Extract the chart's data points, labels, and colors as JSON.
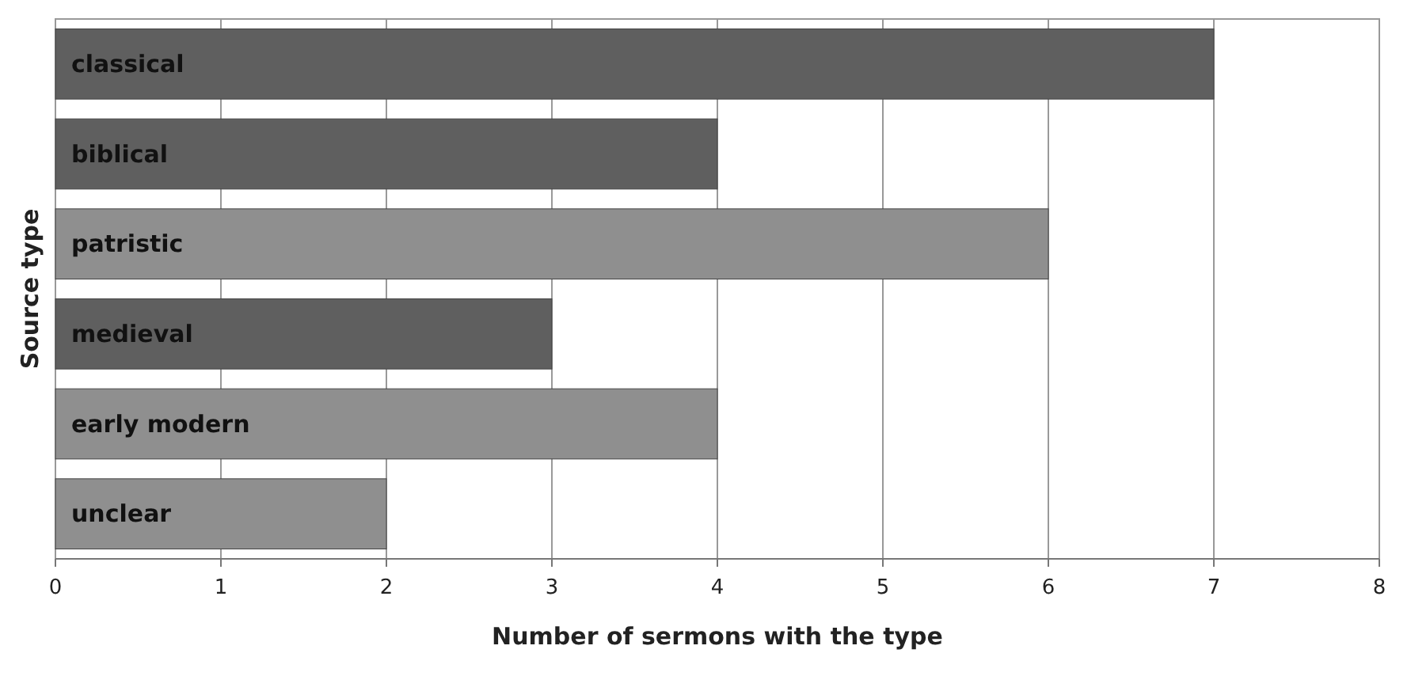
{
  "chart_data": {
    "type": "bar",
    "orientation": "horizontal",
    "xlabel": "Number of sermons with the type",
    "ylabel": "Source type",
    "categories": [
      "classical",
      "biblical",
      "patristic",
      "medieval",
      "early modern",
      "unclear"
    ],
    "values": [
      7,
      4,
      6,
      3,
      4,
      2
    ],
    "colors": [
      "#5f5f5f",
      "#5f5f5f",
      "#8f8f8f",
      "#5f5f5f",
      "#8f8f8f",
      "#8f8f8f"
    ],
    "xlim": [
      0,
      8
    ],
    "xticks": [
      0,
      1,
      2,
      3,
      4,
      5,
      6,
      7,
      8
    ],
    "grid": "x"
  }
}
